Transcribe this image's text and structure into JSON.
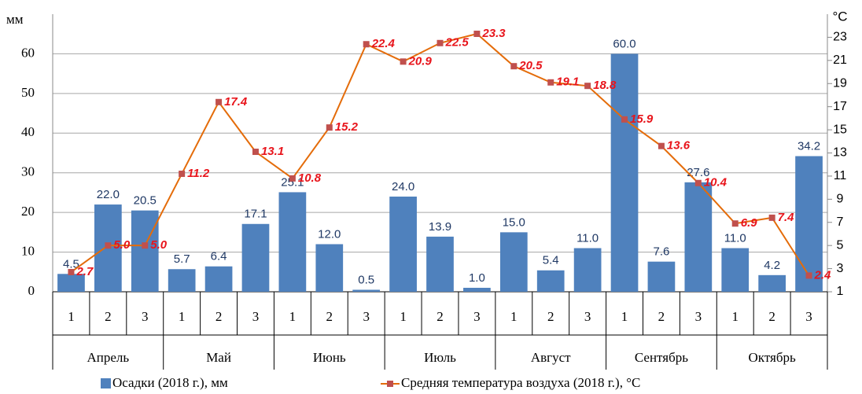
{
  "chart_data": {
    "type": "combo",
    "y_label": "мм",
    "y2_label": "°C",
    "categories": [
      "1",
      "2",
      "3",
      "1",
      "2",
      "3",
      "1",
      "2",
      "3",
      "1",
      "2",
      "3",
      "1",
      "2",
      "3",
      "1",
      "2",
      "3",
      "1",
      "2",
      "3"
    ],
    "category_groups": [
      "Апрель",
      "Май",
      "Июнь",
      "Июль",
      "Август",
      "Сентябрь",
      "Октябрь"
    ],
    "series": [
      {
        "name": "Осадки (2018 г.), мм",
        "type": "bar",
        "color": "#4f81bd",
        "label_color": "#1f3864",
        "values": [
          4.5,
          22.0,
          20.5,
          5.7,
          6.4,
          17.1,
          25.1,
          12.0,
          0.5,
          24.0,
          13.9,
          1.0,
          15.0,
          5.4,
          11.0,
          60.0,
          7.6,
          27.6,
          11.0,
          4.2,
          34.2
        ],
        "value_labels": [
          "4.5",
          "22.0",
          "20.5",
          "5.7",
          "6.4",
          "17.1",
          "25.1",
          "12.0",
          "0.5",
          "24.0",
          "13.9",
          "1.0",
          "15.0",
          "5.4",
          "11.0",
          "60.0",
          "7.6",
          "27.6",
          "11.0",
          "4.2",
          "34.2"
        ]
      },
      {
        "name": "Средняя температура воздуха (2018 г.), °C",
        "type": "line",
        "axis": "y2",
        "color": "#e46c0a",
        "marker_color": "#c0504d",
        "label_color": "#e8141b",
        "values": [
          2.7,
          5.0,
          5.0,
          11.2,
          17.4,
          13.1,
          10.8,
          15.2,
          22.4,
          20.9,
          22.5,
          23.3,
          20.5,
          19.1,
          18.8,
          15.9,
          13.6,
          10.4,
          6.9,
          7.4,
          2.4
        ],
        "value_labels": [
          "2.7",
          "5.0",
          "5.0",
          "11.2",
          "17.4",
          "13.1",
          "10.8",
          "15.2",
          "22.4",
          "20.9",
          "22.5",
          "23.3",
          "20.5",
          "19.1",
          "18.8",
          "15.9",
          "13.6",
          "10.4",
          "6.9",
          "7.4",
          "2.4"
        ]
      }
    ],
    "ylim": [
      0,
      70
    ],
    "yticks": [
      0,
      10,
      20,
      30,
      40,
      50,
      60
    ],
    "y2lim": [
      1,
      25
    ],
    "y2ticks": [
      1,
      3,
      5,
      7,
      9,
      11,
      13,
      15,
      17,
      19,
      21,
      23
    ],
    "grid": true,
    "legend": "bottom"
  }
}
